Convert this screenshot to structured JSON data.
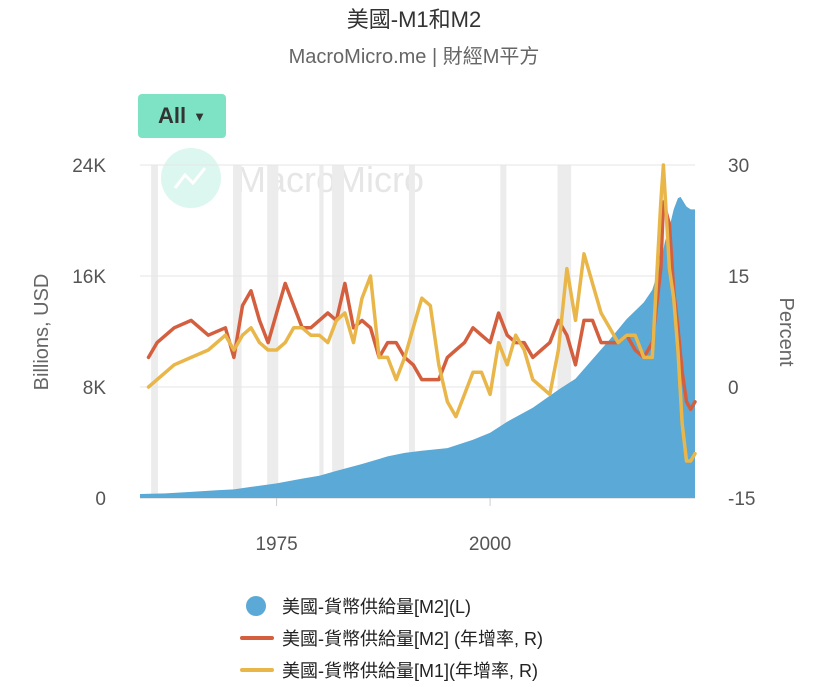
{
  "title": "美國-M1和M2",
  "subtitle": "MacroMicro.me | 財經M平方",
  "range_button": {
    "label": "All",
    "icon": "caret-down-icon"
  },
  "watermark": {
    "text": "MacroMicro",
    "icon": "macromicro-logo-icon"
  },
  "colors": {
    "m2_level": "#5aa9d6",
    "m2_yoy": "#d45f3f",
    "m1_yoy": "#e9b64a",
    "recession": "#ececec",
    "button": "#7ee2c4"
  },
  "chart_data": {
    "type": "line",
    "x_ticks": [
      "1975",
      "2000"
    ],
    "xlim": [
      1959,
      2024
    ],
    "left_axis": {
      "label": "Billions, USD",
      "ticks": [
        "0",
        "8K",
        "16K",
        "24K"
      ],
      "range": [
        0,
        24000
      ]
    },
    "right_axis": {
      "label": "Percent",
      "ticks": [
        "-15",
        "0",
        "15",
        "30"
      ],
      "range": [
        -15,
        30
      ]
    },
    "recessions": [
      [
        1960.3,
        1961.1
      ],
      [
        1969.9,
        1970.9
      ],
      [
        1973.9,
        1975.2
      ],
      [
        1980.0,
        1980.5
      ],
      [
        1981.5,
        1982.9
      ],
      [
        1990.5,
        1991.2
      ],
      [
        2001.2,
        2001.9
      ],
      [
        2007.9,
        2009.5
      ],
      [
        2020.1,
        2020.4
      ]
    ],
    "series": [
      {
        "name": "美國-貨幣供給量[M2](L)",
        "type": "area",
        "axis": "left",
        "x": [
          1959,
          1962,
          1965,
          1968,
          1970,
          1972,
          1975,
          1978,
          1980,
          1982,
          1985,
          1988,
          1990,
          1992,
          1995,
          1998,
          2000,
          2002,
          2005,
          2008,
          2010,
          2012,
          2014,
          2016,
          2018,
          2019,
          2020,
          2020.5,
          2021,
          2021.5,
          2022,
          2022.3,
          2023,
          2023.5,
          2024
        ],
        "values": [
          290,
          330,
          440,
          560,
          620,
          800,
          1050,
          1400,
          1600,
          1950,
          2450,
          3000,
          3250,
          3400,
          3600,
          4200,
          4700,
          5500,
          6500,
          7800,
          8600,
          10000,
          11400,
          12900,
          14100,
          15000,
          17000,
          18500,
          19500,
          20800,
          21600,
          21700,
          21000,
          20800,
          20800
        ]
      },
      {
        "name": "美國-貨幣供給量[M2] (年增率, R)",
        "type": "line",
        "axis": "right",
        "x": [
          1960,
          1961,
          1963,
          1965,
          1967,
          1969,
          1970,
          1971,
          1972,
          1973,
          1974,
          1975,
          1976,
          1977,
          1978,
          1979,
          1980,
          1981,
          1982,
          1983,
          1984,
          1985,
          1986,
          1987,
          1988,
          1989,
          1990,
          1991,
          1992,
          1993,
          1994,
          1995,
          1996,
          1997,
          1998,
          1999,
          2000,
          2001,
          2002,
          2003,
          2004,
          2005,
          2006,
          2007,
          2008,
          2009,
          2010,
          2011,
          2012,
          2013,
          2014,
          2015,
          2016,
          2017,
          2018,
          2019,
          2020,
          2020.3,
          2021,
          2021.5,
          2022,
          2022.5,
          2023,
          2023.5,
          2024
        ],
        "values": [
          4,
          6,
          8,
          9,
          7,
          8,
          4,
          11,
          13,
          9,
          6,
          10,
          14,
          11,
          8,
          8,
          9,
          10,
          9,
          14,
          8,
          9,
          8,
          4,
          6,
          6,
          4,
          3,
          1,
          1,
          1,
          4,
          5,
          6,
          8,
          7,
          6,
          10,
          7,
          6,
          6,
          4,
          5,
          6,
          9,
          7,
          3,
          9,
          9,
          6,
          6,
          6,
          7,
          5,
          4,
          6,
          16,
          25,
          22,
          13,
          8,
          2,
          -2,
          -3,
          -2
        ]
      },
      {
        "name": "美國-貨幣供給量[M1](年增率, R)",
        "type": "line",
        "axis": "right",
        "x": [
          1960,
          1961,
          1963,
          1965,
          1967,
          1969,
          1970,
          1971,
          1972,
          1973,
          1974,
          1975,
          1976,
          1977,
          1978,
          1979,
          1980,
          1981,
          1982,
          1983,
          1984,
          1985,
          1986,
          1987,
          1988,
          1989,
          1990,
          1991,
          1992,
          1993,
          1994,
          1995,
          1996,
          1997,
          1998,
          1999,
          2000,
          2001,
          2002,
          2003,
          2004,
          2005,
          2006,
          2007,
          2008,
          2009,
          2010,
          2011,
          2012,
          2013,
          2014,
          2015,
          2016,
          2017,
          2018,
          2019,
          2020,
          2020.3,
          2021,
          2021.5,
          2022,
          2022.5,
          2023,
          2023.5,
          2024
        ],
        "values": [
          0,
          1,
          3,
          4,
          5,
          7,
          5,
          7,
          8,
          6,
          5,
          5,
          6,
          8,
          8,
          7,
          7,
          6,
          9,
          10,
          6,
          12,
          15,
          4,
          4,
          1,
          4,
          8,
          12,
          11,
          3,
          -2,
          -4,
          -1,
          2,
          2,
          -1,
          6,
          3,
          7,
          5,
          1,
          0,
          -1,
          5,
          16,
          9,
          18,
          14,
          10,
          8,
          6,
          7,
          7,
          4,
          4,
          25,
          32,
          16,
          12,
          5,
          -5,
          -10,
          -10,
          -9
        ]
      }
    ]
  }
}
